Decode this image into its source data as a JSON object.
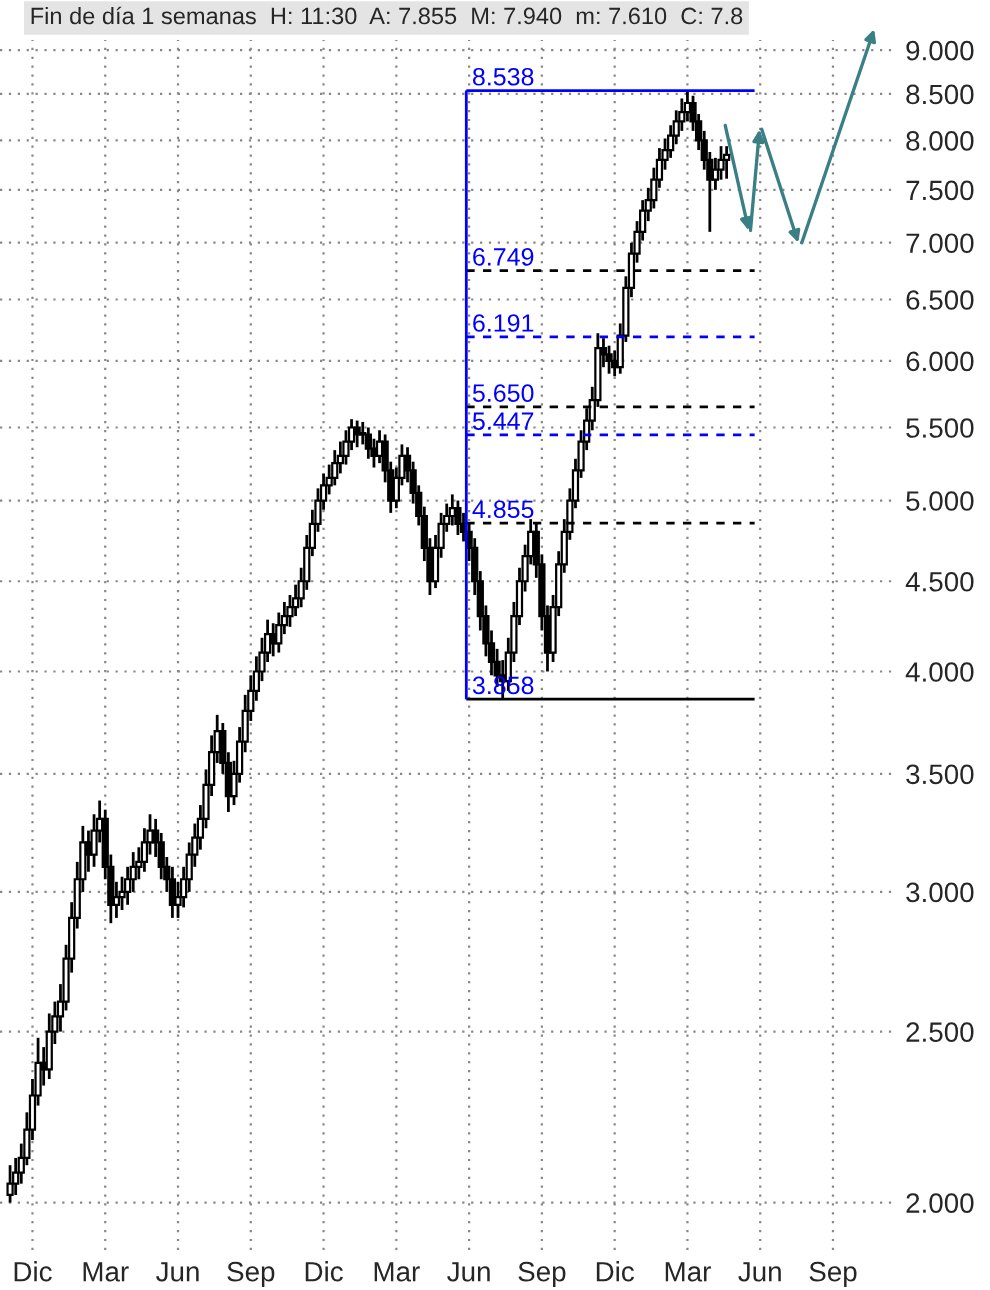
{
  "chart_data": {
    "type": "candlestick",
    "title": "Fin de día 1 semanas  H: 11:30  A: 7.855  M: 7.940  m: 7.610  C: 7.8",
    "categories": [
      null,
      null,
      null,
      null,
      "Dic",
      null,
      null,
      null,
      null,
      null,
      null,
      null,
      null,
      null,
      null,
      null,
      null,
      "Mar",
      null,
      null,
      null,
      null,
      null,
      null,
      null,
      null,
      null,
      null,
      null,
      null,
      "Jun",
      null,
      null,
      null,
      null,
      null,
      null,
      null,
      null,
      null,
      null,
      null,
      null,
      "Sep",
      null,
      null,
      null,
      null,
      null,
      null,
      null,
      null,
      null,
      null,
      null,
      null,
      "Dic",
      null,
      null,
      null,
      null,
      null,
      null,
      null,
      null,
      null,
      null,
      null,
      null,
      "Mar",
      null,
      null,
      null,
      null,
      null,
      null,
      null,
      null,
      null,
      null,
      null,
      null,
      "Jun",
      null,
      null,
      null,
      null,
      null,
      null,
      null,
      null,
      null,
      null,
      null,
      null,
      "Sep",
      null,
      null,
      null,
      null,
      null,
      null,
      null,
      null,
      null,
      null,
      null,
      null,
      "Dic",
      null,
      null,
      null,
      null,
      null,
      null,
      null,
      null,
      null,
      null,
      null,
      null,
      "Mar",
      null,
      null,
      null,
      null,
      null,
      null,
      null,
      null,
      null,
      null,
      null,
      null,
      "Jun",
      null,
      null,
      null,
      null,
      null,
      null,
      null,
      null,
      null,
      null,
      null,
      null,
      "Sep",
      null,
      null,
      null,
      null,
      null,
      null,
      null,
      null,
      null
    ],
    "ohlc": [
      [
        2.02,
        2.1,
        2.0,
        2.05
      ],
      [
        2.05,
        2.12,
        2.02,
        2.08
      ],
      [
        2.08,
        2.16,
        2.05,
        2.12
      ],
      [
        2.12,
        2.25,
        2.1,
        2.2
      ],
      [
        2.2,
        2.35,
        2.17,
        2.3
      ],
      [
        2.3,
        2.48,
        2.27,
        2.4
      ],
      [
        2.4,
        2.45,
        2.33,
        2.38
      ],
      [
        2.38,
        2.56,
        2.35,
        2.5
      ],
      [
        2.5,
        2.6,
        2.46,
        2.55
      ],
      [
        2.55,
        2.66,
        2.5,
        2.6
      ],
      [
        2.6,
        2.8,
        2.57,
        2.75
      ],
      [
        2.75,
        2.96,
        2.7,
        2.9
      ],
      [
        2.9,
        3.12,
        2.86,
        3.05
      ],
      [
        3.05,
        3.27,
        3.0,
        3.2
      ],
      [
        3.2,
        3.25,
        3.08,
        3.15
      ],
      [
        3.15,
        3.32,
        3.1,
        3.25
      ],
      [
        3.25,
        3.38,
        3.2,
        3.3
      ],
      [
        3.3,
        3.34,
        3.05,
        3.1
      ],
      [
        3.1,
        3.15,
        2.88,
        2.95
      ],
      [
        2.95,
        3.04,
        2.9,
        2.98
      ],
      [
        2.98,
        3.06,
        2.93,
        3.0
      ],
      [
        3.0,
        3.1,
        2.95,
        3.05
      ],
      [
        3.05,
        3.16,
        3.0,
        3.1
      ],
      [
        3.1,
        3.18,
        3.05,
        3.12
      ],
      [
        3.12,
        3.26,
        3.08,
        3.2
      ],
      [
        3.2,
        3.32,
        3.15,
        3.25
      ],
      [
        3.25,
        3.3,
        3.14,
        3.2
      ],
      [
        3.2,
        3.24,
        3.05,
        3.1
      ],
      [
        3.1,
        3.14,
        3.0,
        3.05
      ],
      [
        3.05,
        3.1,
        2.9,
        2.95
      ],
      [
        2.95,
        3.04,
        2.9,
        2.98
      ],
      [
        2.98,
        3.1,
        2.94,
        3.05
      ],
      [
        3.05,
        3.2,
        3.0,
        3.15
      ],
      [
        3.15,
        3.28,
        3.1,
        3.22
      ],
      [
        3.22,
        3.36,
        3.17,
        3.3
      ],
      [
        3.3,
        3.52,
        3.26,
        3.45
      ],
      [
        3.45,
        3.68,
        3.4,
        3.6
      ],
      [
        3.6,
        3.78,
        3.55,
        3.7
      ],
      [
        3.7,
        3.74,
        3.5,
        3.55
      ],
      [
        3.55,
        3.6,
        3.33,
        3.4
      ],
      [
        3.4,
        3.56,
        3.36,
        3.5
      ],
      [
        3.5,
        3.72,
        3.46,
        3.65
      ],
      [
        3.65,
        3.88,
        3.6,
        3.8
      ],
      [
        3.8,
        3.98,
        3.75,
        3.9
      ],
      [
        3.9,
        4.08,
        3.85,
        4.0
      ],
      [
        4.0,
        4.18,
        3.95,
        4.1
      ],
      [
        4.1,
        4.28,
        4.05,
        4.2
      ],
      [
        4.2,
        4.26,
        4.08,
        4.15
      ],
      [
        4.15,
        4.32,
        4.1,
        4.25
      ],
      [
        4.25,
        4.38,
        4.2,
        4.3
      ],
      [
        4.3,
        4.42,
        4.24,
        4.35
      ],
      [
        4.35,
        4.48,
        4.3,
        4.4
      ],
      [
        4.4,
        4.58,
        4.35,
        4.5
      ],
      [
        4.5,
        4.78,
        4.45,
        4.7
      ],
      [
        4.7,
        4.94,
        4.65,
        4.85
      ],
      [
        4.85,
        5.08,
        4.8,
        5.0
      ],
      [
        5.0,
        5.18,
        4.94,
        5.1
      ],
      [
        5.1,
        5.24,
        5.04,
        5.15
      ],
      [
        5.15,
        5.34,
        5.1,
        5.25
      ],
      [
        5.25,
        5.4,
        5.18,
        5.3
      ],
      [
        5.3,
        5.48,
        5.24,
        5.4
      ],
      [
        5.4,
        5.56,
        5.34,
        5.5
      ],
      [
        5.5,
        5.55,
        5.36,
        5.45
      ],
      [
        5.45,
        5.54,
        5.38,
        5.45
      ],
      [
        5.45,
        5.5,
        5.28,
        5.35
      ],
      [
        5.35,
        5.42,
        5.22,
        5.3
      ],
      [
        5.3,
        5.48,
        5.25,
        5.4
      ],
      [
        5.4,
        5.45,
        5.12,
        5.2
      ],
      [
        5.2,
        5.26,
        4.92,
        5.0
      ],
      [
        5.0,
        5.22,
        4.95,
        5.15
      ],
      [
        5.15,
        5.38,
        5.1,
        5.3
      ],
      [
        5.3,
        5.36,
        5.12,
        5.2
      ],
      [
        5.2,
        5.26,
        4.98,
        5.05
      ],
      [
        5.05,
        5.1,
        4.84,
        4.9
      ],
      [
        4.9,
        4.96,
        4.62,
        4.7
      ],
      [
        4.7,
        4.76,
        4.42,
        4.5
      ],
      [
        4.5,
        4.78,
        4.46,
        4.7
      ],
      [
        4.7,
        4.92,
        4.64,
        4.85
      ],
      [
        4.85,
        4.98,
        4.8,
        4.9
      ],
      [
        4.9,
        5.04,
        4.84,
        4.95
      ],
      [
        4.95,
        5.0,
        4.78,
        4.85
      ],
      [
        4.85,
        4.92,
        4.74,
        4.8
      ],
      [
        4.8,
        4.86,
        4.62,
        4.7
      ],
      [
        4.7,
        4.76,
        4.42,
        4.5
      ],
      [
        4.5,
        4.56,
        4.22,
        4.3
      ],
      [
        4.3,
        4.36,
        4.08,
        4.15
      ],
      [
        4.15,
        4.22,
        3.98,
        4.05
      ],
      [
        4.05,
        4.12,
        3.92,
        3.98
      ],
      [
        3.98,
        4.06,
        3.858,
        3.95
      ],
      [
        3.95,
        4.18,
        3.9,
        4.1
      ],
      [
        4.1,
        4.38,
        4.05,
        4.3
      ],
      [
        4.3,
        4.58,
        4.25,
        4.5
      ],
      [
        4.5,
        4.72,
        4.44,
        4.65
      ],
      [
        4.65,
        4.88,
        4.6,
        4.8
      ],
      [
        4.8,
        4.86,
        4.52,
        4.6
      ],
      [
        4.6,
        4.66,
        4.22,
        4.3
      ],
      [
        4.3,
        4.36,
        4.0,
        4.1
      ],
      [
        4.1,
        4.42,
        4.05,
        4.35
      ],
      [
        4.35,
        4.68,
        4.3,
        4.6
      ],
      [
        4.6,
        4.88,
        4.55,
        4.8
      ],
      [
        4.8,
        5.08,
        4.75,
        5.0
      ],
      [
        5.0,
        5.28,
        4.95,
        5.2
      ],
      [
        5.2,
        5.48,
        5.15,
        5.4
      ],
      [
        5.4,
        5.64,
        5.34,
        5.55
      ],
      [
        5.55,
        5.8,
        5.48,
        5.7
      ],
      [
        5.7,
        6.22,
        5.65,
        6.1
      ],
      [
        6.1,
        6.18,
        5.95,
        6.05
      ],
      [
        6.05,
        6.12,
        5.9,
        6.0
      ],
      [
        6.0,
        6.08,
        5.88,
        5.95
      ],
      [
        5.95,
        6.3,
        5.9,
        6.2
      ],
      [
        6.2,
        6.7,
        6.15,
        6.6
      ],
      [
        6.6,
        7.0,
        6.52,
        6.9
      ],
      [
        6.9,
        7.2,
        6.82,
        7.1
      ],
      [
        7.1,
        7.4,
        7.02,
        7.3
      ],
      [
        7.3,
        7.52,
        7.2,
        7.4
      ],
      [
        7.4,
        7.72,
        7.32,
        7.6
      ],
      [
        7.6,
        7.92,
        7.52,
        7.8
      ],
      [
        7.8,
        8.02,
        7.7,
        7.9
      ],
      [
        7.9,
        8.16,
        7.82,
        8.05
      ],
      [
        8.05,
        8.32,
        7.96,
        8.2
      ],
      [
        8.2,
        8.45,
        8.1,
        8.3
      ],
      [
        8.3,
        8.538,
        8.2,
        8.4
      ],
      [
        8.4,
        8.48,
        8.1,
        8.2
      ],
      [
        8.2,
        8.28,
        7.9,
        8.0
      ],
      [
        8.0,
        8.1,
        7.7,
        7.8
      ],
      [
        7.8,
        7.88,
        7.1,
        7.6
      ],
      [
        7.6,
        7.82,
        7.5,
        7.7
      ],
      [
        7.7,
        7.94,
        7.6,
        7.8
      ],
      [
        7.8,
        7.94,
        7.61,
        7.85
      ],
      null,
      null,
      null,
      null,
      null,
      null,
      null,
      null,
      null,
      null,
      null,
      null,
      null,
      null,
      null,
      null,
      null,
      null,
      null,
      null,
      null,
      null,
      null,
      null,
      null,
      null,
      null,
      null
    ],
    "color": "#000000",
    "log": true,
    "ylim": [
      1.88,
      9.12
    ],
    "yticks": [
      {
        "value": 2,
        "label": "2.000"
      },
      {
        "value": 2.5,
        "label": "2.500"
      },
      {
        "value": 3,
        "label": "3.000"
      },
      {
        "value": 3.5,
        "label": "3.500"
      },
      {
        "value": 4,
        "label": "4.000"
      },
      {
        "value": 4.5,
        "label": "4.500"
      },
      {
        "value": 5,
        "label": "5.000"
      },
      {
        "value": 5.5,
        "label": "5.500"
      },
      {
        "value": 6,
        "label": "6.000"
      },
      {
        "value": 6.5,
        "label": "6.500"
      },
      {
        "value": 7,
        "label": "7.000"
      },
      {
        "value": 7.5,
        "label": "7.500"
      },
      {
        "value": 8,
        "label": "8.000"
      },
      {
        "value": 8.5,
        "label": "8.500"
      },
      {
        "value": 9,
        "label": "9.000"
      }
    ],
    "grid": true,
    "ref_lines": [
      {
        "axis": "y",
        "value": 8.538,
        "label": "8.538",
        "color": "#0000ff",
        "line_style": "solid"
      },
      {
        "axis": "y",
        "value": 6.749,
        "label": "6.749",
        "color": "#000000",
        "line_style": "dashed"
      },
      {
        "axis": "y",
        "value": 6.191,
        "label": "6.191",
        "color": "#0000ff",
        "line_style": "dashed"
      },
      {
        "axis": "y",
        "value": 5.65,
        "label": "5.650",
        "color": "#000000",
        "line_style": "dashed"
      },
      {
        "axis": "y",
        "value": 5.447,
        "label": "5.447",
        "color": "#0000ff",
        "line_style": "dashed"
      },
      {
        "axis": "y",
        "value": 4.855,
        "label": "4.855",
        "color": "#000000",
        "line_style": "dashed"
      },
      {
        "axis": "y",
        "value": 3.858,
        "label": "3.858",
        "color": "#000000",
        "line_style": "solid"
      }
    ]
  }
}
